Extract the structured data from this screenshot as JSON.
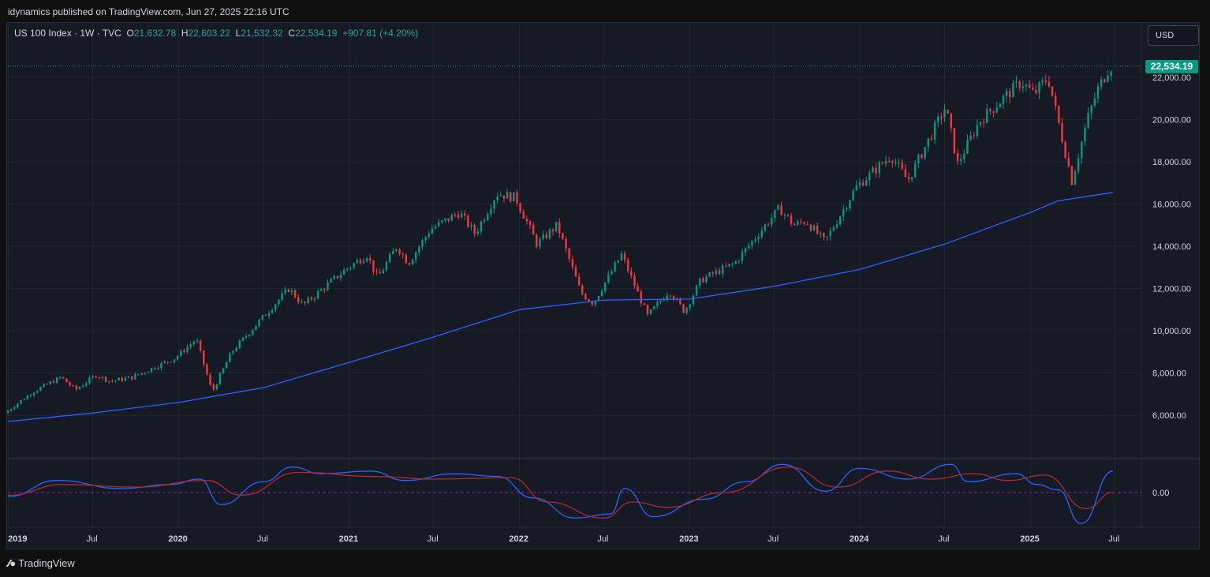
{
  "header": {
    "published": "idynamics published on TradingView.com, Jun 27, 2025 22:16 UTC"
  },
  "legend": {
    "symbol": "US 100 Index · 1W · TVC",
    "o_label": "O",
    "o_value": "21,632.78",
    "h_label": "H",
    "h_value": "22,603.22",
    "l_label": "L",
    "l_value": "21,532.32",
    "c_label": "C",
    "c_value": "22,534.19",
    "change": "+907.81 (+4.20%)"
  },
  "currency_button": "USD",
  "last_price_tag": "22,534.19",
  "footer": {
    "brand": "TradingView"
  },
  "colors": {
    "up": "#089981",
    "down": "#f23645",
    "ma": "#2962ff",
    "osc_fast": "#2962ff",
    "osc_slow": "#b22833",
    "background": "#161a25"
  },
  "chart_data": {
    "type": "candlestick",
    "timeframe": "1W",
    "y_axis": {
      "ticks": [
        "6,000.00",
        "8,000.00",
        "10,000.00",
        "12,000.00",
        "14,000.00",
        "16,000.00",
        "18,000.00",
        "20,000.00",
        "22,000.00"
      ],
      "tick_values": [
        6000,
        8000,
        10000,
        12000,
        14000,
        16000,
        18000,
        20000,
        22000
      ],
      "range": [
        4000,
        24000
      ]
    },
    "x_axis": {
      "ticks": [
        {
          "label": "2019",
          "major": true
        },
        {
          "label": "Jul",
          "major": false
        },
        {
          "label": "2020",
          "major": true
        },
        {
          "label": "Jul",
          "major": false
        },
        {
          "label": "2021",
          "major": true
        },
        {
          "label": "Jul",
          "major": false
        },
        {
          "label": "2022",
          "major": true
        },
        {
          "label": "Jul",
          "major": false
        },
        {
          "label": "2023",
          "major": true
        },
        {
          "label": "Jul",
          "major": false
        },
        {
          "label": "2024",
          "major": true
        },
        {
          "label": "Jul",
          "major": false
        },
        {
          "label": "2025",
          "major": true
        },
        {
          "label": "Jul",
          "major": false
        }
      ],
      "range": [
        "2018-12-31",
        "2025-07-31"
      ]
    },
    "price_path": [
      [
        "2018-12-31",
        6100
      ],
      [
        "2019-03-01",
        7100
      ],
      [
        "2019-05-01",
        7800
      ],
      [
        "2019-06-01",
        7200
      ],
      [
        "2019-07-15",
        7900
      ],
      [
        "2019-08-15",
        7600
      ],
      [
        "2019-10-01",
        7800
      ],
      [
        "2019-12-31",
        8700
      ],
      [
        "2020-02-15",
        9600
      ],
      [
        "2020-03-20",
        7100
      ],
      [
        "2020-05-01",
        9000
      ],
      [
        "2020-07-01",
        10500
      ],
      [
        "2020-09-01",
        12000
      ],
      [
        "2020-10-01",
        11200
      ],
      [
        "2020-12-31",
        12900
      ],
      [
        "2021-02-15",
        13600
      ],
      [
        "2021-03-10",
        12500
      ],
      [
        "2021-04-20",
        14000
      ],
      [
        "2021-05-15",
        13200
      ],
      [
        "2021-07-01",
        14800
      ],
      [
        "2021-09-01",
        15600
      ],
      [
        "2021-10-05",
        14600
      ],
      [
        "2021-11-20",
        16500
      ],
      [
        "2021-12-31",
        16300
      ],
      [
        "2022-02-15",
        14100
      ],
      [
        "2022-03-30",
        15000
      ],
      [
        "2022-05-20",
        11800
      ],
      [
        "2022-06-15",
        11300
      ],
      [
        "2022-08-15",
        13600
      ],
      [
        "2022-10-10",
        10700
      ],
      [
        "2022-11-25",
        11900
      ],
      [
        "2022-12-28",
        10900
      ],
      [
        "2023-02-01",
        12400
      ],
      [
        "2023-04-15",
        13200
      ],
      [
        "2023-06-01",
        14500
      ],
      [
        "2023-07-20",
        15800
      ],
      [
        "2023-08-20",
        15000
      ],
      [
        "2023-09-15",
        15200
      ],
      [
        "2023-10-25",
        14200
      ],
      [
        "2023-12-31",
        16800
      ],
      [
        "2024-03-15",
        18300
      ],
      [
        "2024-04-20",
        17100
      ],
      [
        "2024-07-10",
        20600
      ],
      [
        "2024-08-05",
        17900
      ],
      [
        "2024-09-20",
        19900
      ],
      [
        "2024-11-10",
        21000
      ],
      [
        "2024-12-20",
        21800
      ],
      [
        "2025-01-15",
        21200
      ],
      [
        "2025-02-15",
        22000
      ],
      [
        "2025-04-07",
        17100
      ],
      [
        "2025-05-10",
        20000
      ],
      [
        "2025-06-01",
        21400
      ],
      [
        "2025-06-27",
        22534
      ]
    ],
    "moving_average": [
      [
        "2018-12-31",
        5700
      ],
      [
        "2019-07-01",
        6100
      ],
      [
        "2020-01-01",
        6600
      ],
      [
        "2020-07-01",
        7300
      ],
      [
        "2021-01-01",
        8500
      ],
      [
        "2021-07-01",
        9700
      ],
      [
        "2022-01-01",
        11000
      ],
      [
        "2022-07-01",
        11450
      ],
      [
        "2023-01-01",
        11500
      ],
      [
        "2023-07-01",
        12100
      ],
      [
        "2024-01-01",
        12900
      ],
      [
        "2024-07-01",
        14100
      ],
      [
        "2025-01-01",
        15600
      ],
      [
        "2025-03-01",
        16150
      ],
      [
        "2025-06-27",
        16550
      ]
    ],
    "oscillator": {
      "zero_label": "0.00",
      "fast": [
        [
          "2018-12-31",
          -0.3
        ],
        [
          "2019-04-15",
          0.9
        ],
        [
          "2019-09-01",
          0.3
        ],
        [
          "2019-12-15",
          0.6
        ],
        [
          "2020-02-15",
          1.0
        ],
        [
          "2020-04-01",
          -0.9
        ],
        [
          "2020-07-01",
          0.8
        ],
        [
          "2020-09-01",
          1.9
        ],
        [
          "2020-11-01",
          1.4
        ],
        [
          "2021-02-15",
          1.6
        ],
        [
          "2021-05-01",
          0.9
        ],
        [
          "2021-08-15",
          1.4
        ],
        [
          "2021-11-15",
          1.2
        ],
        [
          "2022-01-30",
          -0.4
        ],
        [
          "2022-05-01",
          -1.9
        ],
        [
          "2022-07-15",
          -1.6
        ],
        [
          "2022-08-15",
          0.3
        ],
        [
          "2022-10-15",
          -1.8
        ],
        [
          "2023-02-01",
          -0.5
        ],
        [
          "2023-05-01",
          0.8
        ],
        [
          "2023-07-20",
          2.1
        ],
        [
          "2023-10-20",
          0.1
        ],
        [
          "2023-12-31",
          1.8
        ],
        [
          "2024-04-15",
          1.0
        ],
        [
          "2024-07-15",
          2.1
        ],
        [
          "2024-08-20",
          0.8
        ],
        [
          "2024-12-01",
          1.4
        ],
        [
          "2025-01-15",
          0.6
        ],
        [
          "2025-03-01",
          0.2
        ],
        [
          "2025-04-20",
          -2.3
        ],
        [
          "2025-06-27",
          1.6
        ]
      ],
      "slow": [
        [
          "2018-12-31",
          -0.2
        ],
        [
          "2019-05-01",
          0.6
        ],
        [
          "2019-10-01",
          0.4
        ],
        [
          "2020-03-01",
          0.9
        ],
        [
          "2020-05-15",
          -0.2
        ],
        [
          "2020-09-15",
          1.5
        ],
        [
          "2021-03-01",
          1.2
        ],
        [
          "2021-07-01",
          1.0
        ],
        [
          "2021-12-15",
          1.1
        ],
        [
          "2022-03-01",
          -0.7
        ],
        [
          "2022-07-01",
          -1.9
        ],
        [
          "2022-09-01",
          -0.7
        ],
        [
          "2022-11-15",
          -1.1
        ],
        [
          "2023-03-15",
          0.0
        ],
        [
          "2023-08-01",
          1.9
        ],
        [
          "2023-11-15",
          0.4
        ],
        [
          "2024-03-01",
          1.6
        ],
        [
          "2024-06-01",
          1.0
        ],
        [
          "2024-09-01",
          1.4
        ],
        [
          "2024-11-15",
          0.9
        ],
        [
          "2025-02-01",
          1.3
        ],
        [
          "2025-05-01",
          -1.2
        ],
        [
          "2025-06-27",
          0.0
        ]
      ]
    }
  }
}
